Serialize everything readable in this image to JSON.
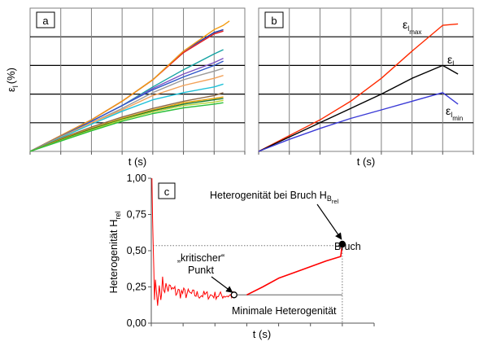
{
  "chart_data": [
    {
      "panel": "a",
      "type": "line",
      "title": "",
      "xlabel": "t (s)",
      "ylabel_main": "ε",
      "ylabel_sub": "l",
      "ylabel_unit": "(%)",
      "xlim": [
        0,
        7
      ],
      "ylim": [
        0,
        5
      ],
      "grid": true,
      "x": [
        0,
        1,
        2,
        3,
        4,
        5,
        6,
        6.3,
        6.5
      ],
      "series": [
        {
          "name": "s1",
          "color": "#1a3aa8",
          "values": [
            0,
            0.55,
            1.1,
            1.75,
            2.5,
            3.5,
            4.15,
            4.25,
            null
          ]
        },
        {
          "name": "s2",
          "color": "#e31a1c",
          "values": [
            0,
            0.55,
            1.1,
            1.75,
            2.5,
            3.45,
            4.1,
            4.2,
            null
          ]
        },
        {
          "name": "s3",
          "color": "#f39c12",
          "values": [
            0,
            0.55,
            1.1,
            1.75,
            2.5,
            3.5,
            4.25,
            4.4,
            4.55
          ]
        },
        {
          "name": "s4",
          "color": "#16a3a3",
          "values": [
            0,
            0.52,
            1.05,
            1.6,
            2.25,
            2.85,
            3.4,
            3.55,
            null
          ]
        },
        {
          "name": "s5",
          "color": "#7b52c2",
          "values": [
            0,
            0.52,
            1.05,
            1.6,
            2.2,
            2.7,
            3.1,
            3.25,
            null
          ]
        },
        {
          "name": "s6",
          "color": "#2e57c8",
          "values": [
            0,
            0.52,
            1.05,
            1.6,
            2.15,
            2.6,
            3.0,
            3.15,
            null
          ]
        },
        {
          "name": "s7",
          "color": "#9a9a9a",
          "values": [
            0,
            0.5,
            1.0,
            1.5,
            2.05,
            2.5,
            2.8,
            2.9,
            null
          ]
        },
        {
          "name": "s8",
          "color": "#f2a25a",
          "values": [
            0,
            0.5,
            1.0,
            1.45,
            1.95,
            2.3,
            2.55,
            2.65,
            null
          ]
        },
        {
          "name": "s9",
          "color": "#1ec1d8",
          "values": [
            0,
            0.48,
            0.95,
            1.4,
            1.8,
            2.05,
            2.25,
            2.35,
            null
          ]
        },
        {
          "name": "s10",
          "color": "#8c6a4a",
          "values": [
            0,
            0.45,
            0.85,
            1.2,
            1.5,
            1.75,
            1.95,
            2.05,
            null
          ]
        },
        {
          "name": "s11",
          "color": "#e8a000",
          "values": [
            0,
            0.42,
            0.8,
            1.15,
            1.45,
            1.7,
            1.85,
            1.9,
            null
          ]
        },
        {
          "name": "s12",
          "color": "#1b7a2f",
          "values": [
            0,
            0.4,
            0.78,
            1.12,
            1.42,
            1.65,
            1.8,
            1.85,
            null
          ]
        },
        {
          "name": "s13",
          "color": "#b5d334",
          "values": [
            0,
            0.38,
            0.75,
            1.1,
            1.38,
            1.6,
            1.72,
            1.78,
            null
          ]
        },
        {
          "name": "s14",
          "color": "#2bbf3a",
          "values": [
            0,
            0.36,
            0.72,
            1.05,
            1.32,
            1.52,
            1.65,
            1.7,
            null
          ]
        }
      ]
    },
    {
      "panel": "b",
      "type": "line",
      "title": "",
      "xlabel": "t (s)",
      "xlim": [
        0,
        7
      ],
      "ylim": [
        0,
        5
      ],
      "grid": true,
      "x": [
        0,
        1,
        2,
        3,
        4,
        5,
        6,
        6.5
      ],
      "series": [
        {
          "name": "max",
          "label_main": "ε",
          "label_sub": "l",
          "label_subsub": "max",
          "color": "#ff2a00",
          "values": [
            0,
            0.55,
            1.1,
            1.75,
            2.55,
            3.5,
            4.4,
            4.45
          ]
        },
        {
          "name": "mean",
          "label_main": "ε",
          "label_sub": "l",
          "label_subsub": "",
          "color": "#000000",
          "values": [
            0,
            0.5,
            1.0,
            1.5,
            2.0,
            2.55,
            3.0,
            2.7
          ]
        },
        {
          "name": "min",
          "label_main": "ε",
          "label_sub": "l",
          "label_subsub": "min",
          "color": "#3a3ad6",
          "values": [
            0,
            0.42,
            0.8,
            1.15,
            1.45,
            1.75,
            2.05,
            1.65
          ]
        }
      ]
    },
    {
      "panel": "c",
      "type": "line",
      "title": "",
      "xlabel": "t (s)",
      "ylabel_main": "Heterogenität H",
      "ylabel_sub": "rel",
      "xlim": [
        0,
        7
      ],
      "ylim": [
        0,
        1
      ],
      "yticks": [
        "0,00",
        "0,25",
        "0,50",
        "0,75",
        "1,00"
      ],
      "ytick_values": [
        0,
        0.25,
        0.5,
        0.75,
        1
      ],
      "series_color": "#ff0000",
      "smooth_x": [
        0.55,
        1.0,
        1.5,
        2.0,
        2.5,
        3.0,
        3.5,
        4.0,
        4.5,
        5.0,
        5.5,
        5.95
      ],
      "smooth_y": [
        0.19,
        0.185,
        0.183,
        0.183,
        0.183,
        0.195,
        0.25,
        0.31,
        0.35,
        0.39,
        0.43,
        0.46
      ],
      "minimal_heterogeneity_level": 0.195,
      "fracture_level": 0.535,
      "critical_point": {
        "x": 2.6,
        "y": 0.195
      },
      "fracture_point": {
        "x": 6.0,
        "y": 0.545
      },
      "annotations": {
        "heterogeneity_at_fracture_main": "Heterogenität bei Bruch H",
        "heterogeneity_at_fracture_sub": "B",
        "heterogeneity_at_fracture_subsub": "rel",
        "fracture": "Bruch",
        "critical_line1": "„kritischer“",
        "critical_line2": "Punkt",
        "minimal": "Minimale Heterogenität"
      }
    }
  ]
}
